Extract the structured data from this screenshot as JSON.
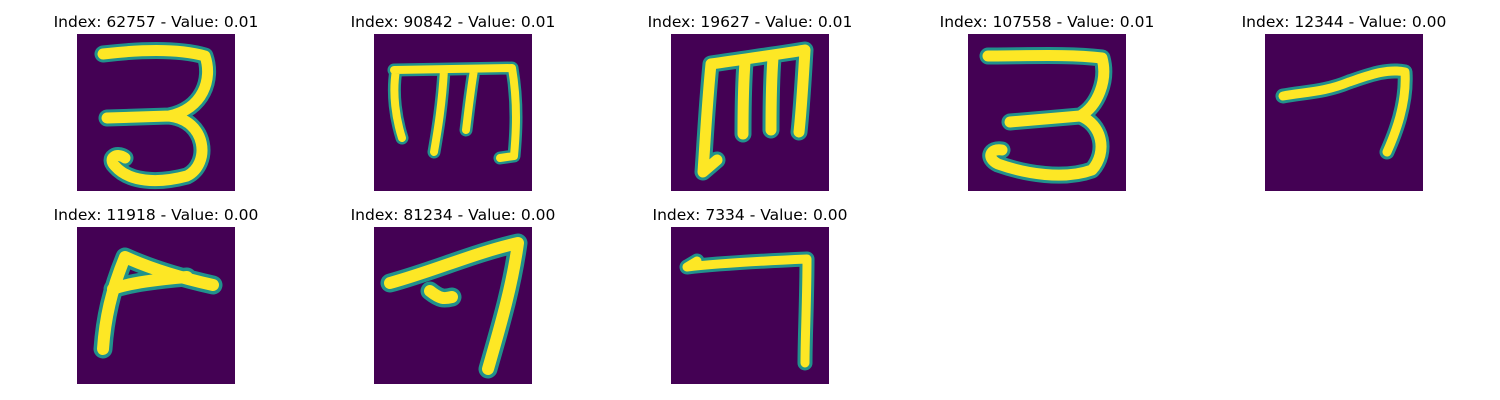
{
  "colors": {
    "background": "#440154",
    "stroke_edge": "#21918c",
    "stroke_mid": "#5ec962",
    "stroke_core": "#fde725"
  },
  "panels": [
    {
      "title": "Index: 62757 - Value: 0.01",
      "glyph": "digit-3"
    },
    {
      "title": "Index: 90842 - Value: 0.01",
      "glyph": "m-shape"
    },
    {
      "title": "Index: 19627 - Value: 0.01",
      "glyph": "m-shape"
    },
    {
      "title": "Index: 107558 - Value: 0.01",
      "glyph": "digit-3"
    },
    {
      "title": "Index: 12344 - Value: 0.00",
      "glyph": "digit-7"
    },
    {
      "title": "Index: 11918 - Value: 0.00",
      "glyph": "digit-7"
    },
    {
      "title": "Index: 81234 - Value: 0.00",
      "glyph": "digit-7"
    },
    {
      "title": "Index: 7334 - Value: 0.00",
      "glyph": "digit-7"
    }
  ]
}
